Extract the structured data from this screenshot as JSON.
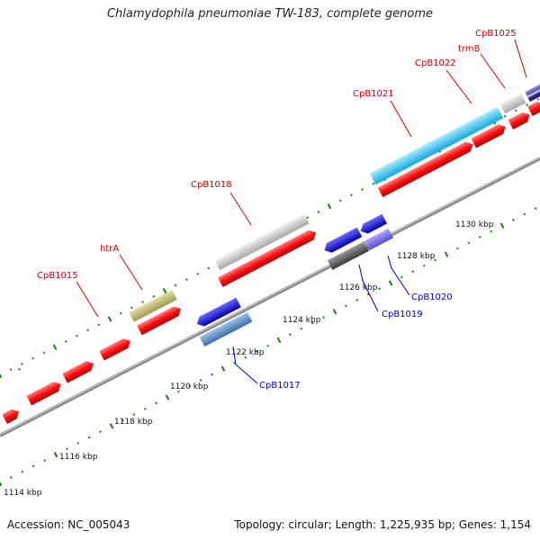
{
  "title": "Chlamydophila pneumoniae TW-183, complete genome",
  "footer": {
    "accession": "Accession: NC_005043",
    "summary": "Topology: circular; Length: 1,225,935 bp; Genes: 1,154"
  },
  "colors": {
    "backbone": "#777777",
    "tick": "#1a7a1a",
    "forward_label": "#cc0000",
    "reverse_label": "#0000cc"
  },
  "kbp_labels": [
    "1114 kbp",
    "1116 kbp",
    "1118 kbp",
    "1120 kbp",
    "1122 kbp",
    "1124 kbp",
    "1126 kbp",
    "1128 kbp",
    "1130 kbp"
  ],
  "gene_labels": [
    {
      "text": "CpB1015",
      "strand": "forward"
    },
    {
      "text": "htrA",
      "strand": "forward"
    },
    {
      "text": "CpB1018",
      "strand": "forward"
    },
    {
      "text": "CpB1021",
      "strand": "forward"
    },
    {
      "text": "CpB1022",
      "strand": "forward"
    },
    {
      "text": "trmB",
      "strand": "forward"
    },
    {
      "text": "CpB1025",
      "strand": "forward"
    },
    {
      "text": "CpB1017",
      "strand": "reverse"
    },
    {
      "text": "CpB1019",
      "strand": "reverse"
    },
    {
      "text": "CpB1020",
      "strand": "reverse"
    }
  ]
}
